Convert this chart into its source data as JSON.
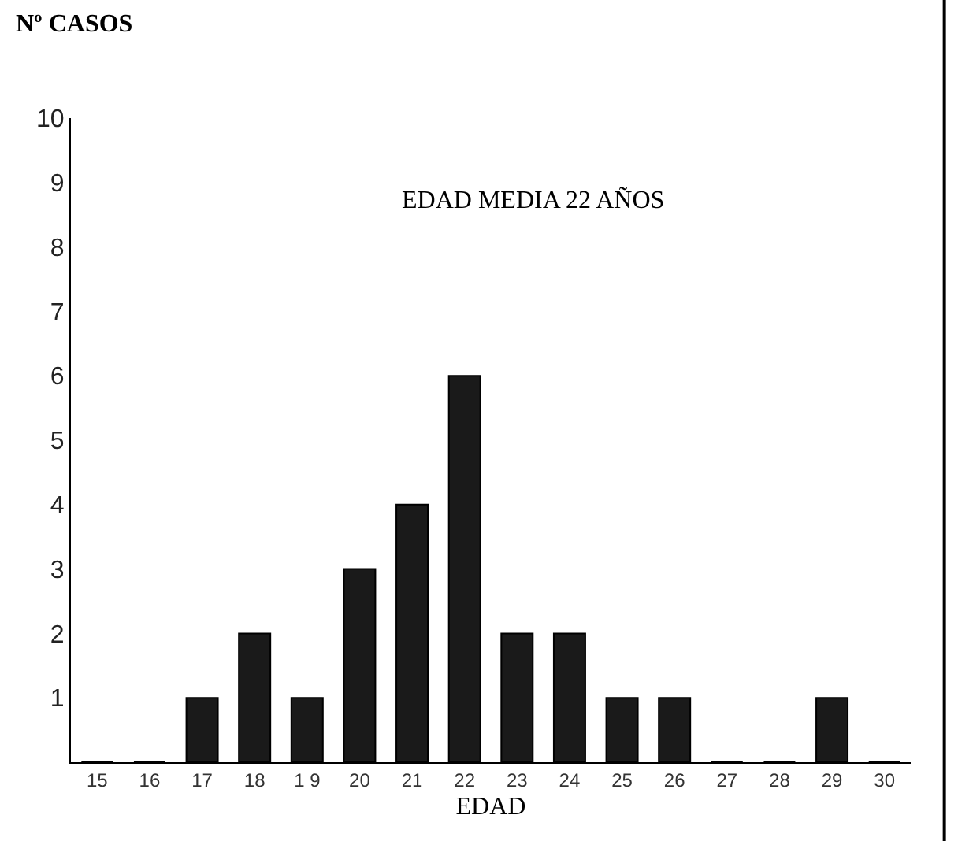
{
  "chart_data": {
    "type": "bar",
    "ylabel": "Nº CASOS",
    "xlabel": "EDAD",
    "annotations": [
      "EDAD MEDIA 22 AÑOS"
    ],
    "categories": [
      "15",
      "16",
      "17",
      "18",
      "1 9",
      "20",
      "21",
      "22",
      "23",
      "24",
      "25",
      "26",
      "27",
      "28",
      "29",
      "30"
    ],
    "values": [
      0,
      0,
      1,
      2,
      1,
      3,
      4,
      6,
      2,
      2,
      1,
      1,
      0,
      0,
      1,
      0
    ],
    "color": "#1a1a1a",
    "ylim": [
      0,
      10
    ],
    "yticks": [
      1,
      2,
      3,
      4,
      5,
      6,
      7,
      8,
      9,
      10
    ]
  }
}
